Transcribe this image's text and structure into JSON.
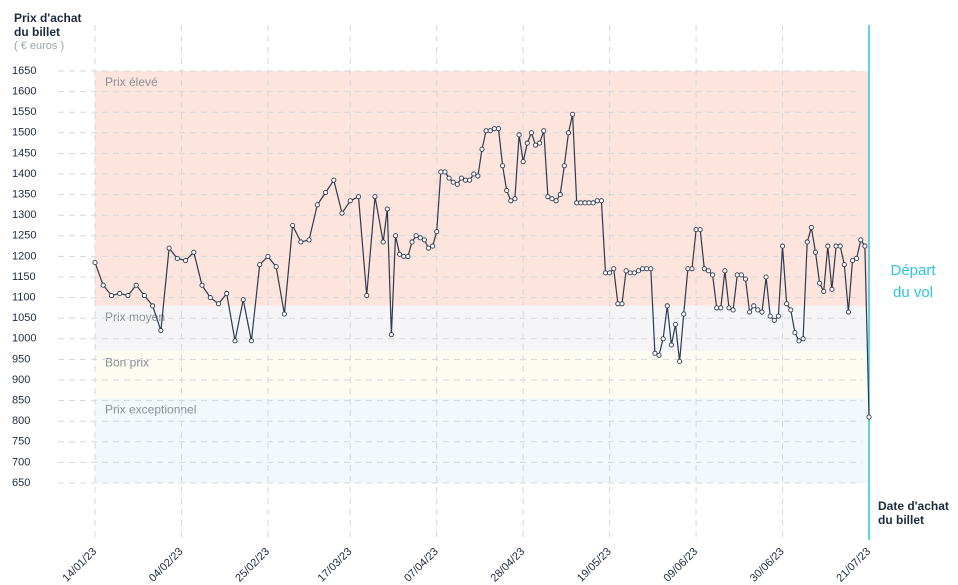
{
  "chart_data": {
    "type": "line",
    "y_title": "Prix d'achat du billet",
    "y_unit": "( € euros )",
    "x_title": "Date d'achat du billet",
    "annotation": {
      "text": "Départ du vol",
      "x": "21/07/23",
      "color": "#2fc4de"
    },
    "color": "#2d3a4f",
    "grid": true,
    "bands": [
      {
        "label": "Prix élevé",
        "from": 1080,
        "to": 1650,
        "color": "#fde4dc"
      },
      {
        "label": "Prix moyen",
        "from": 970,
        "to": 1080,
        "color": "#f5f5f7"
      },
      {
        "label": "Bon prix",
        "from": 855,
        "to": 970,
        "color": "#fdfcf2"
      },
      {
        "label": "Prix exceptionnel",
        "from": 650,
        "to": 855,
        "color": "#f1f9fd"
      }
    ],
    "ylim": [
      650,
      1650
    ],
    "yticks": [
      650,
      700,
      750,
      800,
      850,
      900,
      950,
      1000,
      1050,
      1100,
      1150,
      1200,
      1250,
      1300,
      1350,
      1400,
      1450,
      1500,
      1550,
      1600,
      1650
    ],
    "xlim": [
      "14/01/23",
      "21/07/23"
    ],
    "xticks": [
      "14/01/23",
      "04/02/23",
      "25/02/23",
      "17/03/23",
      "07/04/23",
      "28/04/23",
      "19/05/23",
      "09/06/23",
      "30/06/23",
      "21/07/23"
    ],
    "x": [
      "14/01/23",
      "16/01/23",
      "18/01/23",
      "20/01/23",
      "22/01/23",
      "24/01/23",
      "26/01/23",
      "28/01/23",
      "30/01/23",
      "01/02/23",
      "03/02/23",
      "05/02/23",
      "07/02/23",
      "09/02/23",
      "11/02/23",
      "13/02/23",
      "15/02/23",
      "17/02/23",
      "19/02/23",
      "21/02/23",
      "23/02/23",
      "25/02/23",
      "27/02/23",
      "01/03/23",
      "03/03/23",
      "05/03/23",
      "07/03/23",
      "09/03/23",
      "11/03/23",
      "13/03/23",
      "15/03/23",
      "17/03/23",
      "19/03/23",
      "21/03/23",
      "23/03/23",
      "25/03/23",
      "26/03/23",
      "27/03/23",
      "28/03/23",
      "29/03/23",
      "30/03/23",
      "31/03/23",
      "01/04/23",
      "02/04/23",
      "03/04/23",
      "04/04/23",
      "05/04/23",
      "06/04/23",
      "07/04/23",
      "08/04/23",
      "09/04/23",
      "10/04/23",
      "11/04/23",
      "12/04/23",
      "13/04/23",
      "14/04/23",
      "15/04/23",
      "16/04/23",
      "17/04/23",
      "18/04/23",
      "19/04/23",
      "20/04/23",
      "21/04/23",
      "22/04/23",
      "23/04/23",
      "24/04/23",
      "25/04/23",
      "26/04/23",
      "27/04/23",
      "28/04/23",
      "29/04/23",
      "30/04/23",
      "01/05/23",
      "02/05/23",
      "03/05/23",
      "04/05/23",
      "05/05/23",
      "06/05/23",
      "07/05/23",
      "08/05/23",
      "09/05/23",
      "10/05/23",
      "11/05/23",
      "12/05/23",
      "13/05/23",
      "14/05/23",
      "15/05/23",
      "16/05/23",
      "17/05/23",
      "18/05/23",
      "19/05/23",
      "20/05/23",
      "21/05/23",
      "22/05/23",
      "23/05/23",
      "24/05/23",
      "25/05/23",
      "26/05/23",
      "27/05/23",
      "28/05/23",
      "29/05/23",
      "30/05/23",
      "31/05/23",
      "01/06/23",
      "02/06/23",
      "03/06/23",
      "04/06/23",
      "05/06/23",
      "06/06/23",
      "07/06/23",
      "08/06/23",
      "09/06/23",
      "10/06/23",
      "11/06/23",
      "12/06/23",
      "13/06/23",
      "14/06/23",
      "15/06/23",
      "16/06/23",
      "17/06/23",
      "18/06/23",
      "19/06/23",
      "20/06/23",
      "21/06/23",
      "22/06/23",
      "23/06/23",
      "24/06/23",
      "25/06/23",
      "26/06/23",
      "27/06/23",
      "28/06/23",
      "29/06/23",
      "30/06/23",
      "01/07/23",
      "02/07/23",
      "03/07/23",
      "04/07/23",
      "05/07/23",
      "06/07/23",
      "07/07/23",
      "08/07/23",
      "09/07/23",
      "10/07/23",
      "11/07/23",
      "12/07/23",
      "13/07/23",
      "14/07/23",
      "15/07/23",
      "16/07/23",
      "17/07/23",
      "18/07/23",
      "19/07/23",
      "20/07/23",
      "21/07/23"
    ],
    "values": [
      1185,
      1130,
      1105,
      1110,
      1105,
      1130,
      1105,
      1080,
      1020,
      1220,
      1195,
      1190,
      1210,
      1130,
      1100,
      1085,
      1110,
      995,
      1095,
      995,
      1180,
      1200,
      1175,
      1060,
      1275,
      1235,
      1240,
      1325,
      1355,
      1385,
      1305,
      1335,
      1345,
      1105,
      1345,
      1235,
      1315,
      1010,
      1250,
      1205,
      1200,
      1200,
      1235,
      1250,
      1245,
      1240,
      1220,
      1225,
      1260,
      1405,
      1405,
      1390,
      1380,
      1375,
      1390,
      1385,
      1385,
      1400,
      1395,
      1460,
      1505,
      1505,
      1510,
      1510,
      1420,
      1360,
      1335,
      1340,
      1495,
      1430,
      1475,
      1500,
      1470,
      1475,
      1505,
      1345,
      1340,
      1335,
      1350,
      1420,
      1500,
      1545,
      1330,
      1330,
      1330,
      1330,
      1330,
      1335,
      1335,
      1160,
      1160,
      1170,
      1085,
      1085,
      1165,
      1160,
      1160,
      1165,
      1170,
      1170,
      1170,
      965,
      960,
      1000,
      1080,
      985,
      1035,
      945,
      1060,
      1170,
      1170,
      1265,
      1265,
      1170,
      1165,
      1155,
      1075,
      1075,
      1165,
      1075,
      1070,
      1155,
      1155,
      1145,
      1065,
      1080,
      1070,
      1065,
      1150,
      1055,
      1045,
      1055,
      1225,
      1085,
      1070,
      1015,
      995,
      1000,
      1235,
      1270,
      1210,
      1135,
      1115,
      1225,
      1120,
      1225,
      1225,
      1180,
      1065,
      1190,
      1195,
      1240,
      1225,
      810
    ]
  }
}
